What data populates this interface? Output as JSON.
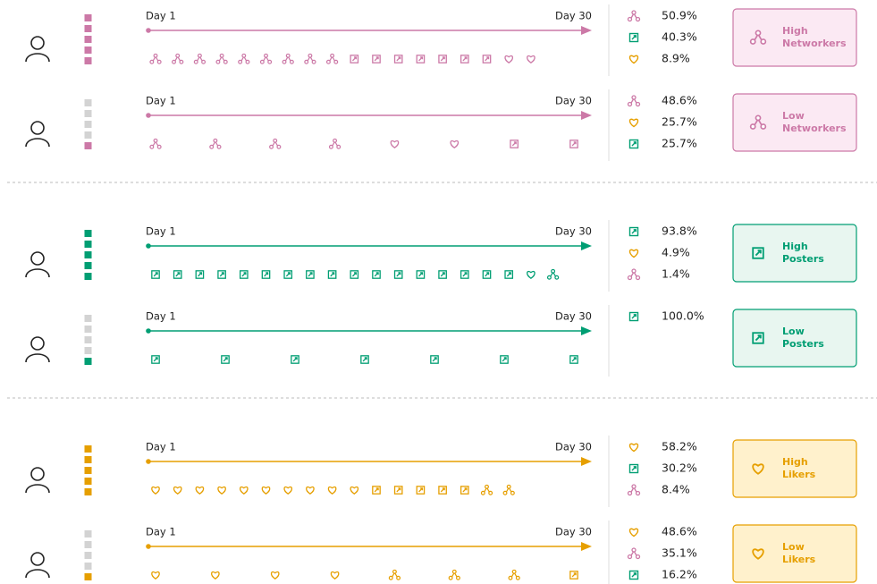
{
  "rows": [
    {
      "day_start": "Day 1",
      "day_end": "Day 30",
      "stats": [
        "50.9%",
        "40.3%",
        "8.9%"
      ],
      "label": [
        "High",
        "Networkers"
      ]
    },
    {
      "day_start": "Day 1",
      "day_end": "Day 30",
      "stats": [
        "48.6%",
        "25.7%",
        "25.7%"
      ],
      "label": [
        "Low",
        "Networkers"
      ]
    },
    {
      "day_start": "Day 1",
      "day_end": "Day 30",
      "stats": [
        "93.8%",
        "4.9%",
        "1.4%"
      ],
      "label": [
        "High",
        "Posters"
      ]
    },
    {
      "day_start": "Day 1",
      "day_end": "Day 30",
      "stats": [
        "100.0%"
      ],
      "label": [
        "Low",
        "Posters"
      ]
    },
    {
      "day_start": "Day 1",
      "day_end": "Day 30",
      "stats": [
        "58.2%",
        "30.2%",
        "8.4%"
      ],
      "label": [
        "High",
        "Likers"
      ]
    },
    {
      "day_start": "Day 1",
      "day_end": "Day 30",
      "stats": [
        "48.6%",
        "35.1%",
        "16.2%"
      ],
      "label": [
        "Low",
        "Likers"
      ]
    }
  ]
}
